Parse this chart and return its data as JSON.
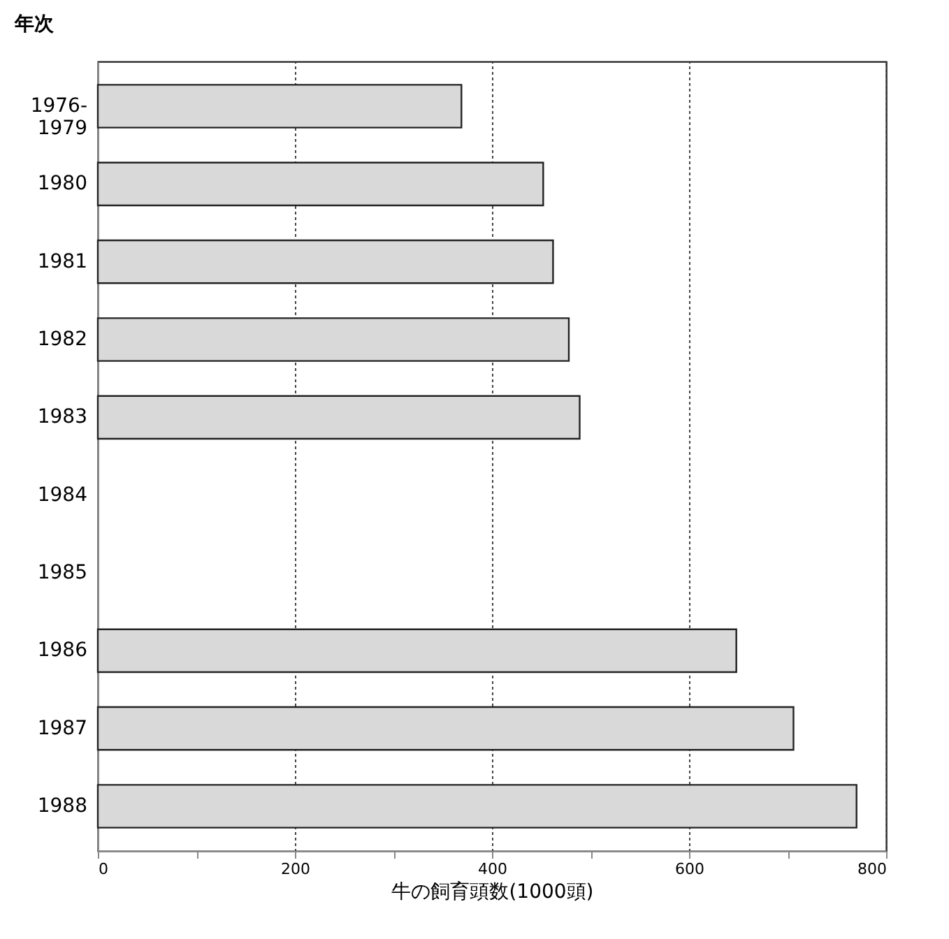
{
  "chart_data": {
    "type": "bar",
    "orientation": "horizontal",
    "xlabel": "牛の飼育頭数(1000頭)",
    "ylabel": "年次",
    "categories": [
      "1976-\n1979",
      "1980",
      "1981",
      "1982",
      "1983",
      "1984",
      "1985",
      "1986",
      "1987",
      "1988"
    ],
    "values": [
      369,
      452,
      462,
      478,
      489,
      null,
      null,
      648,
      706,
      770
    ],
    "color": "#d9d9d9",
    "xlim": [
      0,
      800
    ],
    "xticks": [
      0,
      {
        "value": 100,
        "label": null
      },
      200,
      {
        "value": 300,
        "label": null
      },
      400,
      {
        "value": 500,
        "label": null
      },
      600,
      {
        "value": 700,
        "label": null
      },
      800
    ],
    "grid": "x"
  }
}
